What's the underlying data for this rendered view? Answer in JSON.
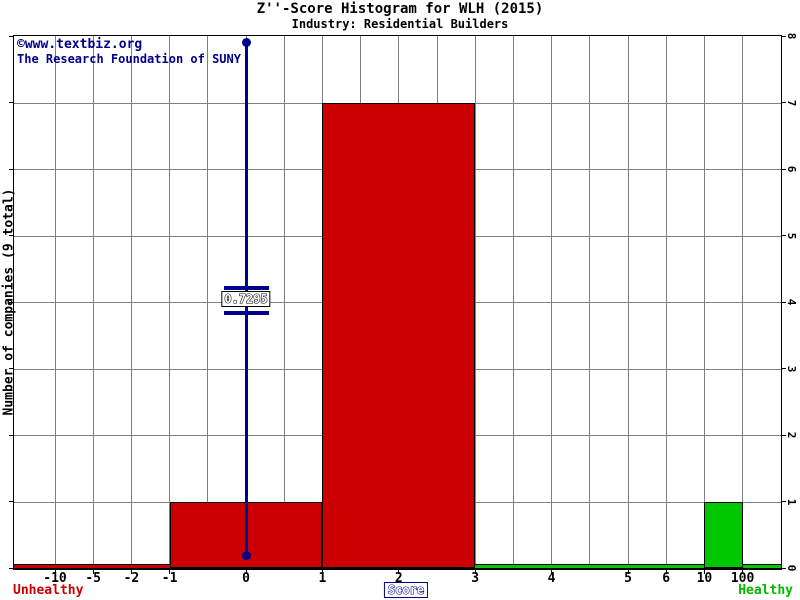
{
  "title": "Z''-Score Histogram for WLH (2015)",
  "subtitle": "Industry: Residential Builders",
  "watermark": {
    "line1": "©www.textbiz.org",
    "line2": "The Research Foundation of SUNY"
  },
  "y_axis": {
    "label": "Number of companies (9 total)",
    "right_tick_labels": [
      "0",
      "1",
      "2",
      "3",
      "4",
      "5",
      "6",
      "7",
      "8"
    ]
  },
  "x_axis": {
    "label": "Score",
    "tick_labels": [
      "-10",
      "-5",
      "-2",
      "-1",
      "0",
      "1",
      "2",
      "3",
      "4",
      "5",
      "6",
      "10",
      "100"
    ]
  },
  "zone_labels": {
    "left": "Unhealthy",
    "right": "Healthy"
  },
  "marker": {
    "label": "0.7295"
  },
  "colors": {
    "bar_red": "#cc0000",
    "bar_green": "#00c800",
    "marker_navy": "#00008b",
    "grid_gray": "#808080",
    "unhealthy_text": "#cc0000",
    "healthy_text": "#00bb00"
  },
  "chart_data": {
    "type": "bar",
    "title": "Z''-Score Histogram for WLH (2015)",
    "subtitle": "Industry: Residential Builders",
    "xlabel": "Score",
    "ylabel": "Number of companies (9 total)",
    "total_companies": 9,
    "ylim": [
      0,
      8
    ],
    "grid": true,
    "x_scale": "piecewise non-linear",
    "x_tick_labels": [
      "-10",
      "-5",
      "-2",
      "-1",
      "0",
      "1",
      "2",
      "3",
      "4",
      "5",
      "6",
      "10",
      "100"
    ],
    "bars": [
      {
        "from": "-1",
        "to": "1",
        "count": 1,
        "color": "#cc0000",
        "zone": "unhealthy"
      },
      {
        "from": "1",
        "to": "3",
        "count": 7,
        "color": "#cc0000",
        "zone": "unhealthy"
      },
      {
        "from": "10",
        "to": "100",
        "count": 1,
        "color": "#00c800",
        "zone": "healthy"
      }
    ],
    "zone_strips": [
      {
        "zone": "unhealthy",
        "from_edge": "left",
        "to": "-1",
        "color": "#cc0000"
      },
      {
        "zone": "healthy",
        "from": "3",
        "to_edge": "right",
        "color": "#00c800"
      }
    ],
    "marker": {
      "score_label": "0.7295",
      "drawn_at_x": "0",
      "color": "#00008b"
    }
  }
}
